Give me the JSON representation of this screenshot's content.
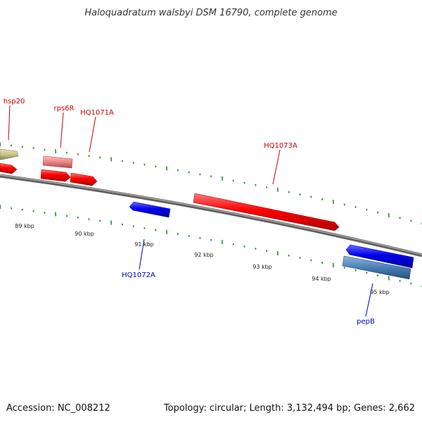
{
  "title": "Haloquadratum walsbyi DSM 16790, complete genome",
  "footer": {
    "accession": "Accession: NC_008212",
    "topology": "Topology: circular; Length: 3,132,494 bp; Genes: 2,662"
  },
  "colors": {
    "background": "#ffffff",
    "backbone": "#808080",
    "tick": "#2e8b2e",
    "forward_gene": "#ff0000",
    "reverse_gene": "#0000ee",
    "pseudogene": "#f08080",
    "other_gene": "#c8c48a",
    "cds_steel": "#4a7fb5",
    "label_forward": "#cc0000",
    "label_reverse": "#0000bb"
  },
  "ticks": [
    {
      "label": "89 kbp",
      "kbp": 89
    },
    {
      "label": "90 kbp",
      "kbp": 90
    },
    {
      "label": "91 kbp",
      "kbp": 91
    },
    {
      "label": "92 kbp",
      "kbp": 92
    },
    {
      "label": "93 kbp",
      "kbp": 93
    },
    {
      "label": "94 kbp",
      "kbp": 94
    },
    {
      "label": "95 kbp",
      "kbp": 95
    }
  ],
  "genes": [
    {
      "id": "hsp20",
      "label": "hsp20",
      "strand": "forward",
      "type": "other"
    },
    {
      "id": "rps6R",
      "label": "rps6R",
      "strand": "forward",
      "type": "pseudogene"
    },
    {
      "id": "HQ1071A",
      "label": "HQ1071A",
      "strand": "forward",
      "type": "gene"
    },
    {
      "id": "HQ1073A",
      "label": "HQ1073A",
      "strand": "forward",
      "type": "gene"
    },
    {
      "id": "HQ1072A",
      "label": "HQ1072A",
      "strand": "reverse",
      "type": "gene"
    },
    {
      "id": "pepB",
      "label": "pepB",
      "strand": "reverse",
      "type": "cds"
    }
  ]
}
